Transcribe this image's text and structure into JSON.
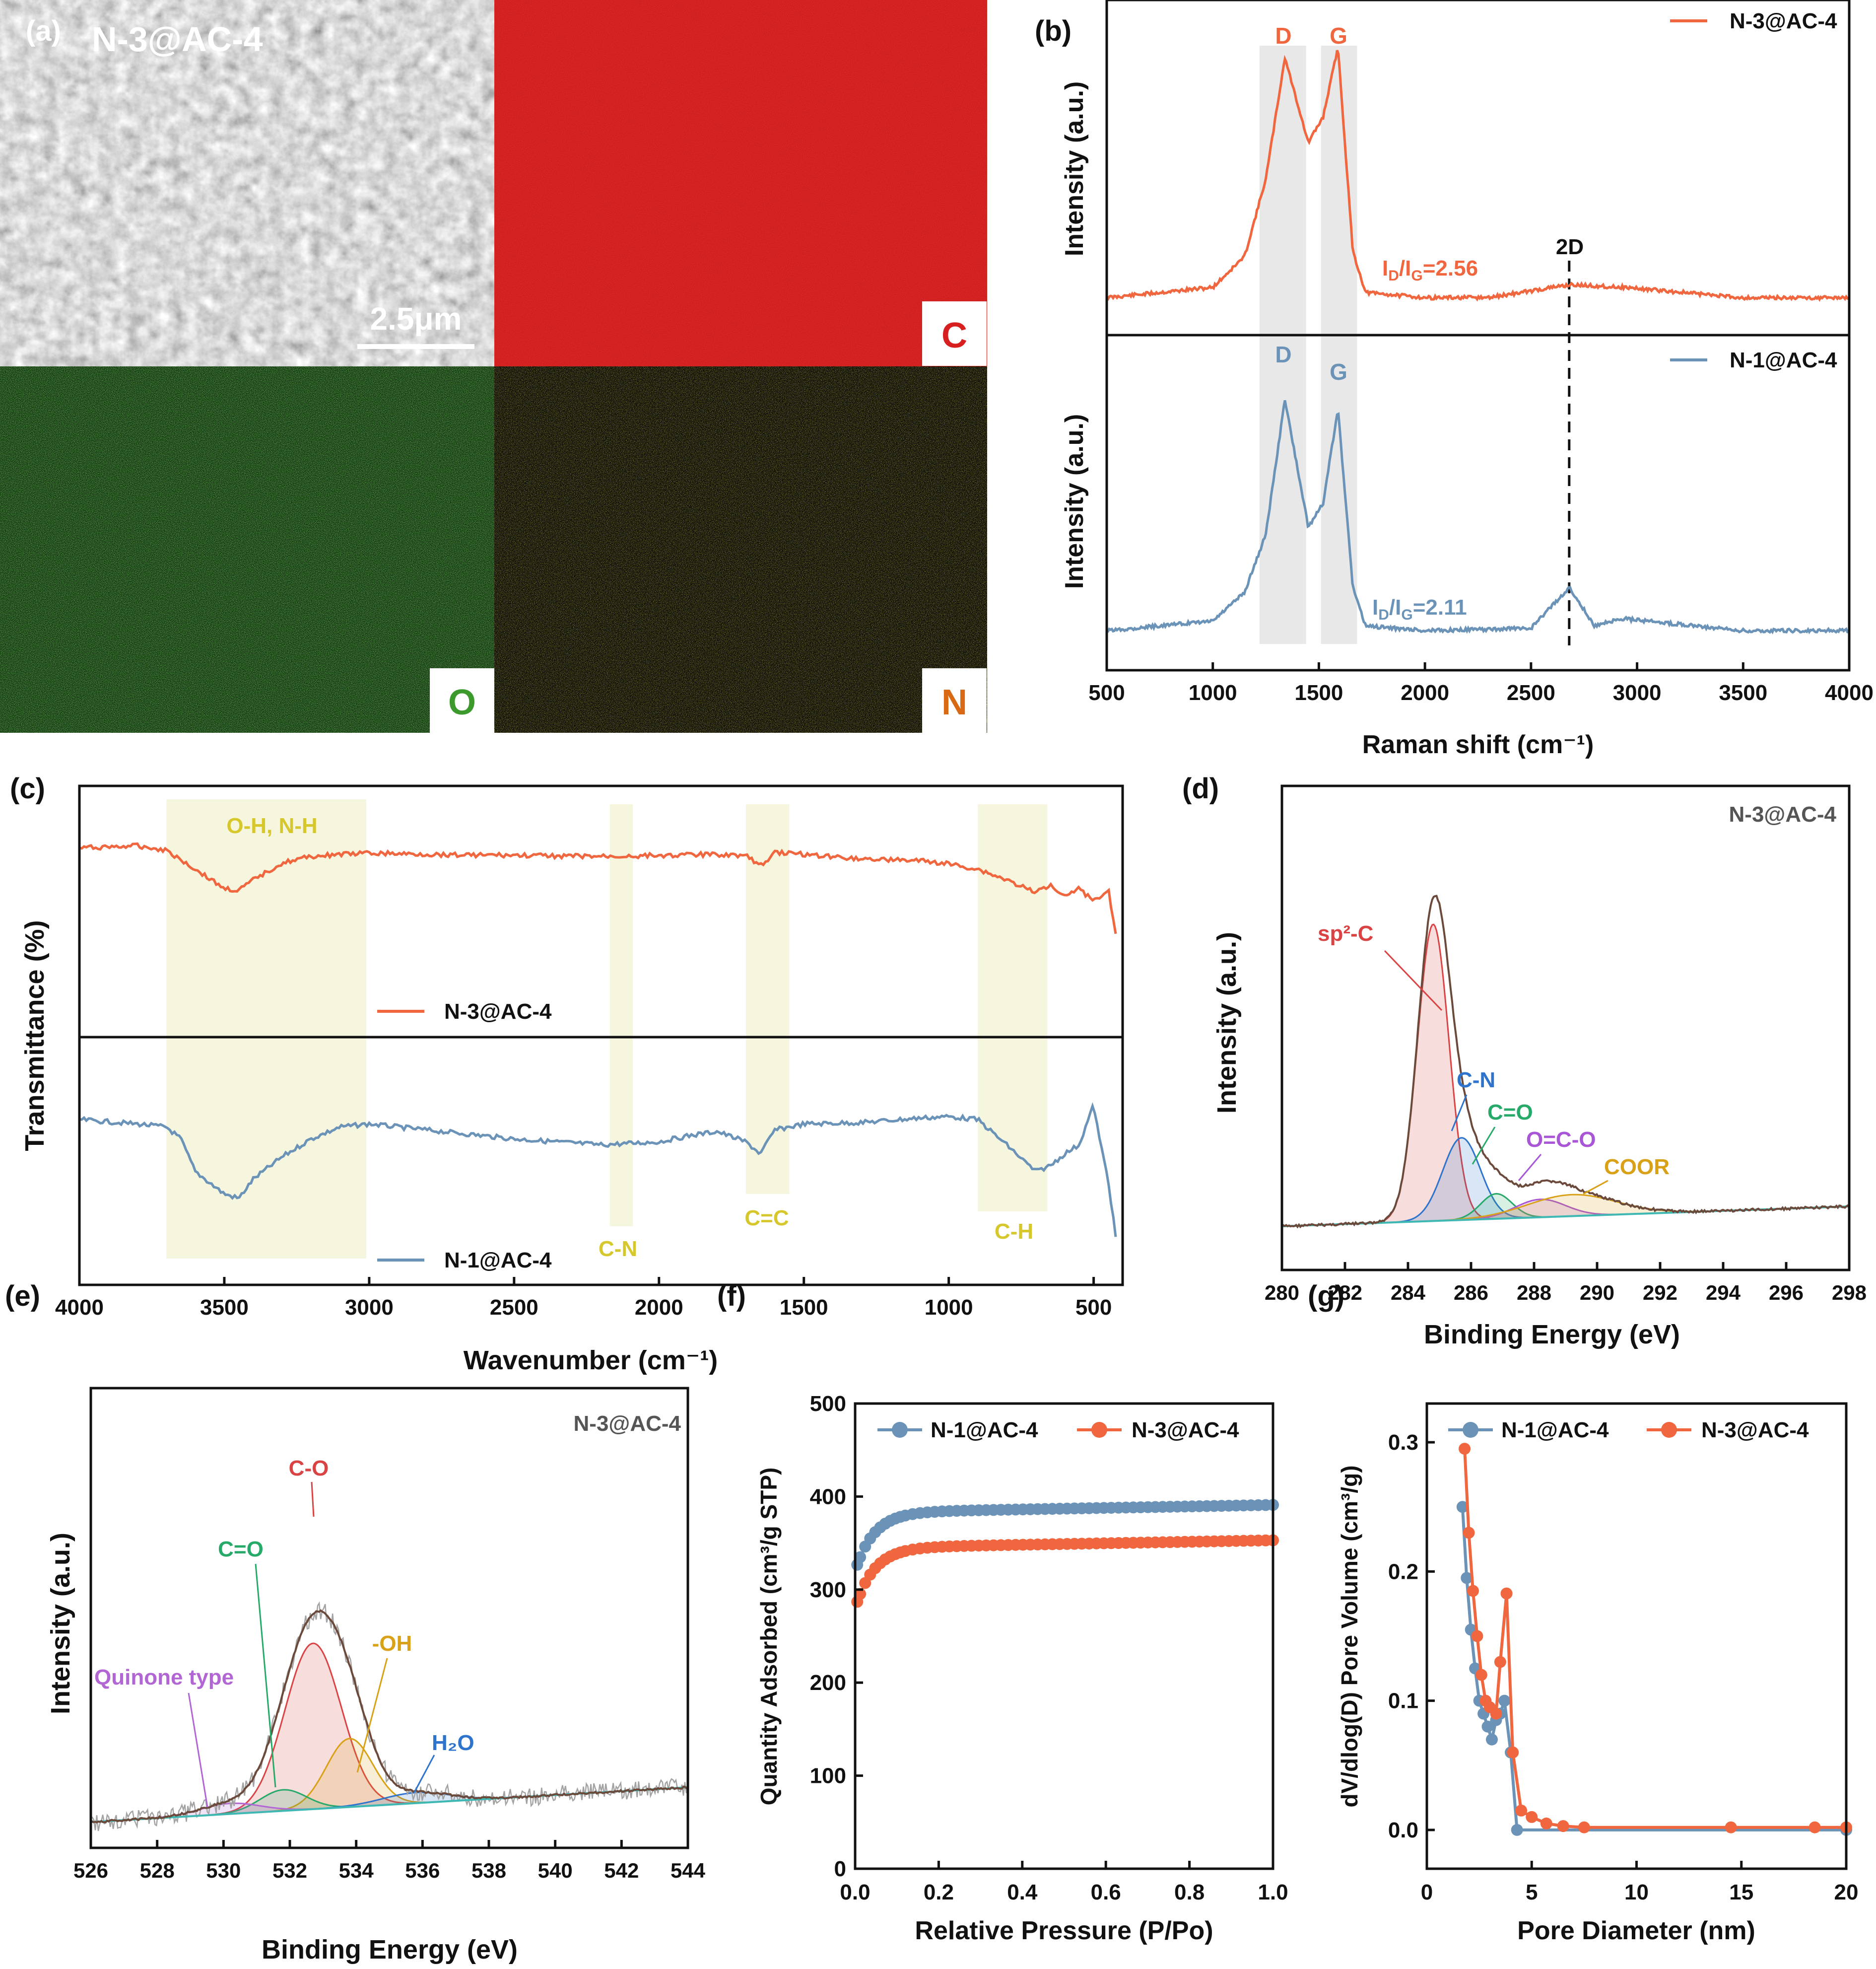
{
  "figure": {
    "colors": {
      "orange": "#f0663f",
      "blue": "#6b93b8",
      "red_map": "#d81f1f",
      "green_map": "#38a62e",
      "yellow_map": "#d6ce2c"
    }
  },
  "panel_a": {
    "panel_label": "(a)",
    "sample_label": "N-3@AC-4",
    "scale_bar": "2.5μm",
    "maps": {
      "C": "C",
      "O": "O",
      "N": "N"
    }
  },
  "chart_data": [
    {
      "id": "b",
      "type": "line",
      "panel_label": "(b)",
      "xlabel": "Raman shift (cm⁻¹)",
      "ylabel_top": "Intensity (a.u.)",
      "ylabel_bottom": "Intensity (a.u.)",
      "xlim": [
        500,
        4000
      ],
      "xticks": [
        "500",
        "1000",
        "1500",
        "2000",
        "2500",
        "3000",
        "3500",
        "4000"
      ],
      "series": [
        {
          "name": "N-3@AC-4",
          "color": "#f0663f",
          "ratio_text": "ID/IG=2.56",
          "x": [
            500,
            1000,
            1150,
            1250,
            1340,
            1450,
            1520,
            1590,
            1660,
            1720,
            2000,
            2300,
            2680,
            2940,
            3500,
            4000
          ],
          "y": [
            0.02,
            0.06,
            0.18,
            0.48,
            0.95,
            0.62,
            0.72,
            0.99,
            0.2,
            0.04,
            0.02,
            0.02,
            0.07,
            0.06,
            0.02,
            0.02
          ]
        },
        {
          "name": "N-1@AC-4",
          "color": "#6b93b8",
          "ratio_text": "ID/IG=2.11",
          "x": [
            500,
            1000,
            1150,
            1250,
            1340,
            1450,
            1520,
            1590,
            1660,
            1720,
            2000,
            2500,
            2680,
            2800,
            2930,
            3500,
            4000
          ],
          "y": [
            0.02,
            0.06,
            0.18,
            0.42,
            0.98,
            0.45,
            0.55,
            0.94,
            0.2,
            0.04,
            0.02,
            0.03,
            0.2,
            0.04,
            0.07,
            0.02,
            0.02
          ]
        }
      ],
      "peak_labels": [
        "D",
        "G",
        "D",
        "G",
        "2D"
      ],
      "bands": [
        [
          1220,
          1440
        ],
        [
          1510,
          1680
        ]
      ],
      "dashed_line_x": 2680
    },
    {
      "id": "c",
      "type": "line",
      "panel_label": "(c)",
      "xlabel": "Wavenumber (cm⁻¹)",
      "ylabel": "Transmittance (%)",
      "xlim": [
        4000,
        400
      ],
      "xticks": [
        "4000",
        "3500",
        "3000",
        "2500",
        "2000",
        "1500",
        "1000",
        "500"
      ],
      "band_labels": [
        "O-H, N-H",
        "C-N",
        "C=C",
        "C-H"
      ],
      "bands": [
        [
          3700,
          3010
        ],
        [
          2170,
          2090
        ],
        [
          1700,
          1550
        ],
        [
          900,
          660
        ]
      ],
      "series": [
        {
          "name": "N-3@AC-4",
          "color": "#f0663f",
          "x": [
            4000,
            3800,
            3700,
            3600,
            3500,
            3450,
            3400,
            3300,
            3200,
            3100,
            3000,
            2800,
            2500,
            2200,
            2000,
            1800,
            1700,
            1650,
            1600,
            1500,
            1300,
            1100,
            1000,
            900,
            800,
            700,
            650,
            600,
            550,
            500,
            450,
            420
          ],
          "y": [
            0.8,
            0.82,
            0.78,
            0.6,
            0.42,
            0.4,
            0.5,
            0.66,
            0.72,
            0.74,
            0.75,
            0.74,
            0.73,
            0.72,
            0.73,
            0.74,
            0.73,
            0.63,
            0.76,
            0.74,
            0.7,
            0.68,
            0.65,
            0.6,
            0.5,
            0.38,
            0.46,
            0.36,
            0.42,
            0.3,
            0.42,
            -0.05
          ]
        },
        {
          "name": "N-1@AC-4",
          "color": "#6b93b8",
          "x": [
            4000,
            3800,
            3700,
            3650,
            3600,
            3500,
            3450,
            3400,
            3300,
            3200,
            3100,
            3000,
            2800,
            2500,
            2200,
            2000,
            1900,
            1800,
            1700,
            1650,
            1600,
            1500,
            1300,
            1100,
            1000,
            900,
            800,
            700,
            650,
            600,
            550,
            500,
            480,
            450,
            420
          ],
          "y": [
            0.75,
            0.72,
            0.7,
            0.62,
            0.4,
            0.25,
            0.22,
            0.35,
            0.5,
            0.62,
            0.7,
            0.72,
            0.68,
            0.62,
            0.58,
            0.6,
            0.64,
            0.67,
            0.6,
            0.52,
            0.68,
            0.72,
            0.73,
            0.76,
            0.77,
            0.75,
            0.58,
            0.4,
            0.44,
            0.52,
            0.58,
            0.85,
            0.62,
            0.35,
            -0.1
          ]
        }
      ]
    },
    {
      "id": "d",
      "type": "line",
      "panel_label": "(d)",
      "sample_label": "N-3@AC-4",
      "xlabel": "Binding Energy (eV)",
      "ylabel": "Intensity (a.u.)",
      "xlim": [
        280,
        298
      ],
      "xticks": [
        "280",
        "282",
        "284",
        "286",
        "288",
        "290",
        "292",
        "294",
        "296",
        "298"
      ],
      "components": [
        {
          "name": "sp²-C",
          "color": "#d94343",
          "center": 284.8,
          "height": 0.83,
          "width": 0.5
        },
        {
          "name": "C-N",
          "color": "#2e73cc",
          "center": 285.7,
          "height": 0.23,
          "width": 0.6
        },
        {
          "name": "C=O",
          "color": "#27a96a",
          "center": 286.8,
          "height": 0.07,
          "width": 0.5
        },
        {
          "name": "O=C-O",
          "color": "#a855d6",
          "center": 288.2,
          "height": 0.05,
          "width": 0.8
        },
        {
          "name": "COOR",
          "color": "#d9a118",
          "center": 289.2,
          "height": 0.06,
          "width": 1.4
        }
      ],
      "label_texts": [
        "sp²-C",
        "C-N",
        "C=O",
        "O=C-O",
        "COOR"
      ]
    },
    {
      "id": "e",
      "type": "line",
      "panel_label": "(e)",
      "sample_label": "N-3@AC-4",
      "xlabel": "Binding Energy (eV)",
      "ylabel": "Intensity (a.u.)",
      "xlim": [
        526,
        544
      ],
      "xticks": [
        "526",
        "528",
        "530",
        "532",
        "534",
        "536",
        "538",
        "540",
        "542",
        "544"
      ],
      "components": [
        {
          "name": "C-O",
          "color": "#d94343",
          "center": 532.7,
          "height": 0.63,
          "width": 0.85
        },
        {
          "name": "-OH",
          "color": "#d9a118",
          "center": 533.8,
          "height": 0.26,
          "width": 0.7
        },
        {
          "name": "C=O",
          "color": "#27a96a",
          "center": 531.8,
          "height": 0.08,
          "width": 0.7
        },
        {
          "name": "Quinone type",
          "color": "#b266d4",
          "center": 530.2,
          "height": 0.04,
          "width": 0.9
        },
        {
          "name": "H2O",
          "color": "#2e73cc",
          "center": 535.8,
          "height": 0.04,
          "width": 1.0
        }
      ],
      "label_texts": [
        "C-O",
        "C=O",
        "-OH",
        "Quinone type",
        "H₂O"
      ]
    },
    {
      "id": "f",
      "type": "line",
      "panel_label": "(f)",
      "xlabel": "Relative Pressure (P/Po)",
      "ylabel": "Quantity Adsorbed (cm³/g STP)",
      "xlim": [
        0,
        1
      ],
      "ylim": [
        0,
        500
      ],
      "xticks": [
        "0.0",
        "0.2",
        "0.4",
        "0.6",
        "0.8",
        "1.0"
      ],
      "yticks": [
        "0",
        "100",
        "200",
        "300",
        "400",
        "500"
      ],
      "series": [
        {
          "name": "N-1@AC-4",
          "color": "#6b93b8",
          "base": 320,
          "plateau": 383
        },
        {
          "name": "N-3@AC-4",
          "color": "#f0663f",
          "base": 280,
          "plateau": 345
        }
      ]
    },
    {
      "id": "g",
      "type": "line",
      "panel_label": "(g)",
      "xlabel": "Pore Diameter (nm)",
      "ylabel": "dV/dlog(D) Pore Volume (cm³/g)",
      "xlim": [
        0,
        20
      ],
      "ylim": [
        -0.03,
        0.33
      ],
      "xticks": [
        "0",
        "5",
        "10",
        "15",
        "20"
      ],
      "yticks": [
        "0.0",
        "0.1",
        "0.2",
        "0.3"
      ],
      "series": [
        {
          "name": "N-1@AC-4",
          "color": "#6b93b8",
          "x": [
            1.7,
            1.9,
            2.1,
            2.3,
            2.5,
            2.7,
            2.9,
            3.1,
            3.3,
            3.5,
            3.7,
            4.0,
            4.3,
            20.0
          ],
          "y": [
            0.25,
            0.195,
            0.155,
            0.125,
            0.1,
            0.09,
            0.08,
            0.07,
            0.085,
            0.09,
            0.1,
            0.06,
            0.0,
            0.0
          ]
        },
        {
          "name": "N-3@AC-4",
          "color": "#f0663f",
          "x": [
            1.8,
            2.0,
            2.2,
            2.4,
            2.6,
            2.8,
            3.0,
            3.3,
            3.5,
            3.8,
            4.1,
            4.5,
            5.0,
            5.7,
            6.5,
            7.5,
            14.5,
            18.5,
            20.0
          ],
          "y": [
            0.295,
            0.23,
            0.185,
            0.15,
            0.12,
            0.1,
            0.095,
            0.09,
            0.13,
            0.183,
            0.06,
            0.015,
            0.01,
            0.005,
            0.003,
            0.002,
            0.002,
            0.002,
            0.002
          ]
        }
      ]
    }
  ]
}
